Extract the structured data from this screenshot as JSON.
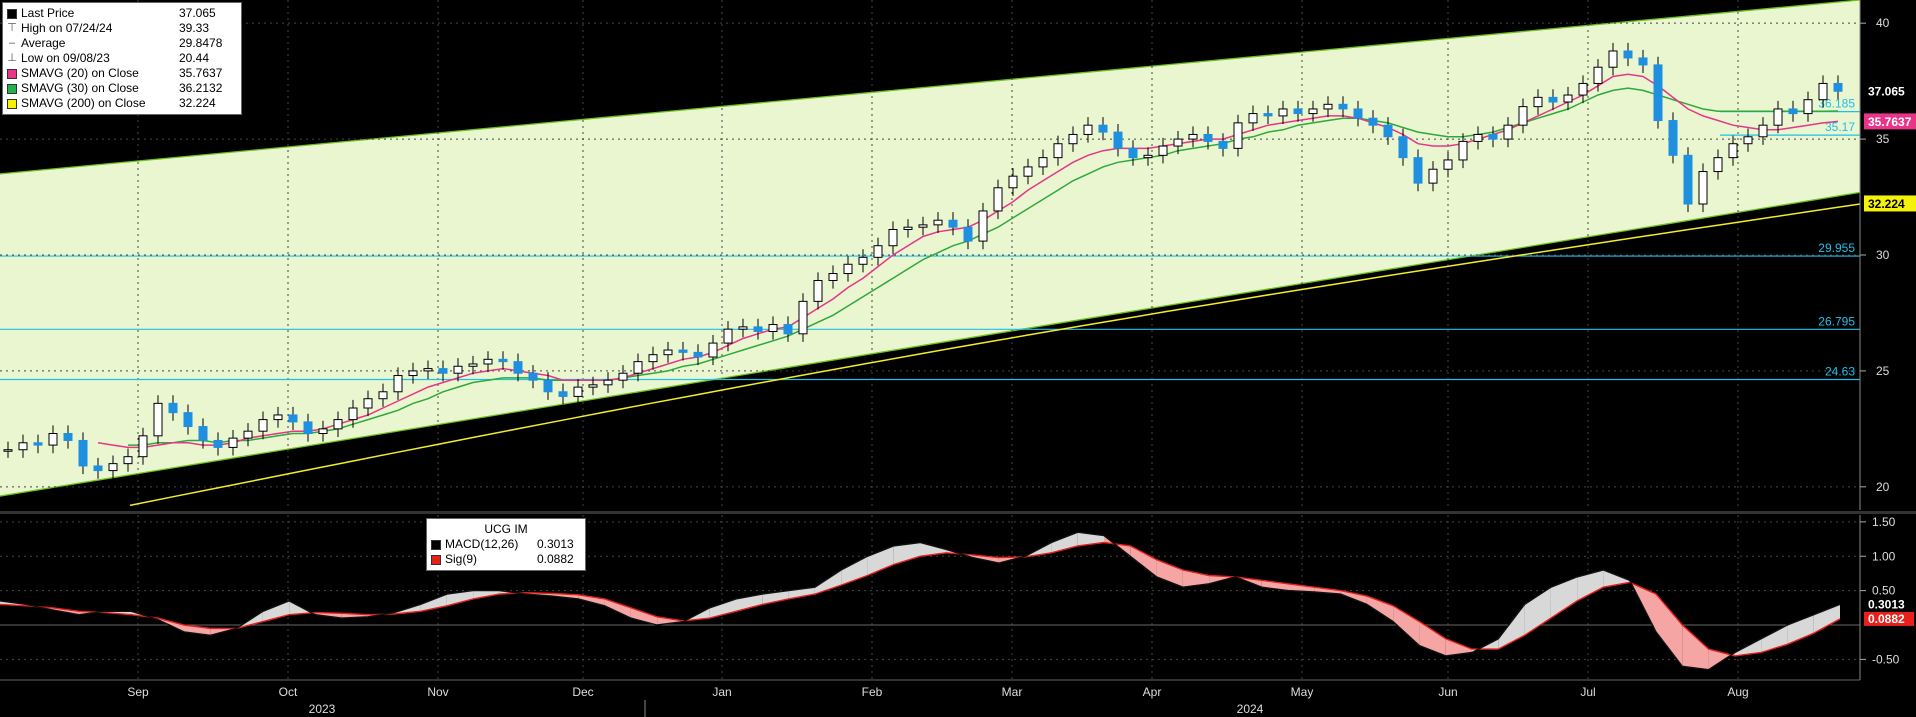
{
  "legend": {
    "items": [
      {
        "label": "Last Price",
        "value": "37.065",
        "color": "#000000",
        "glyph": "square"
      },
      {
        "label": "High on 07/24/24",
        "value": "39.33",
        "glyph": "high"
      },
      {
        "label": "Average",
        "value": "29.8478",
        "glyph": "avg"
      },
      {
        "label": "Low on 09/08/23",
        "value": "20.44",
        "glyph": "low"
      },
      {
        "label": "SMAVG (20)  on Close",
        "value": "35.7637",
        "color": "#e8358a",
        "glyph": "square"
      },
      {
        "label": "SMAVG (30)  on Close",
        "value": "36.2132",
        "color": "#22b14c",
        "glyph": "square"
      },
      {
        "label": "SMAVG (200)  on Close",
        "value": "32.224",
        "color": "#f5f20a",
        "glyph": "square"
      }
    ]
  },
  "macd_legend": {
    "title": "UCG IM",
    "items": [
      {
        "label": "MACD(12,26)",
        "value": "0.3013",
        "color": "#000000"
      },
      {
        "label": "Sig(9)",
        "value": "0.0882",
        "color": "#e8201c"
      }
    ]
  },
  "chart_data": [
    {
      "type": "candlestick",
      "title": "UCG IM",
      "x_months": [
        "Sep",
        "Oct",
        "Nov",
        "Dec",
        "Jan",
        "Feb",
        "Mar",
        "Apr",
        "May",
        "Jun",
        "Jul",
        "Aug"
      ],
      "years": [
        "2023",
        "2024"
      ],
      "y_ticks": [
        20,
        25,
        30,
        35,
        40
      ],
      "ylim": [
        19,
        41
      ],
      "grid": true,
      "levels": [
        {
          "value": 24.63,
          "label": "24.63"
        },
        {
          "value": 26.795,
          "label": "26.795"
        },
        {
          "value": 29.955,
          "label": "29.955"
        },
        {
          "value": 35.17,
          "label": "35.17"
        },
        {
          "value": 36.185,
          "label": "36.185"
        }
      ],
      "price_tags": [
        {
          "value": 37.065,
          "label": "37.065",
          "bg": "#000000",
          "fg": "#ffffff"
        },
        {
          "value": 35.7637,
          "label": "35.7637",
          "bg": "#e8358a",
          "fg": "#ffffff"
        },
        {
          "value": 32.224,
          "label": "32.224",
          "bg": "#f5f20a",
          "fg": "#000000"
        }
      ],
      "close_series": [
        21.6,
        21.9,
        21.8,
        22.3,
        22.0,
        20.9,
        20.7,
        21.0,
        21.3,
        22.2,
        23.6,
        23.2,
        22.6,
        22.0,
        21.7,
        22.1,
        22.4,
        22.9,
        23.1,
        22.8,
        22.3,
        22.5,
        22.9,
        23.4,
        23.8,
        24.1,
        24.8,
        25.0,
        25.1,
        24.9,
        25.2,
        25.3,
        25.5,
        25.4,
        24.9,
        24.6,
        24.1,
        23.9,
        24.3,
        24.4,
        24.6,
        24.9,
        25.4,
        25.7,
        25.9,
        25.8,
        25.6,
        26.2,
        26.8,
        26.9,
        26.7,
        27.0,
        26.6,
        28.0,
        28.9,
        29.2,
        29.6,
        29.9,
        30.4,
        31.1,
        31.2,
        31.3,
        31.5,
        31.2,
        30.6,
        31.9,
        32.9,
        33.4,
        33.8,
        34.2,
        34.8,
        35.2,
        35.6,
        35.3,
        34.6,
        34.2,
        34.3,
        34.7,
        35.0,
        35.2,
        34.9,
        34.6,
        35.7,
        36.1,
        36.0,
        36.3,
        36.1,
        36.3,
        36.5,
        36.3,
        35.9,
        35.6,
        35.1,
        34.2,
        33.1,
        33.7,
        34.1,
        34.9,
        35.2,
        35.0,
        35.6,
        36.4,
        36.8,
        36.6,
        36.9,
        37.4,
        38.1,
        38.8,
        38.5,
        38.2,
        35.8,
        34.3,
        32.2,
        33.6,
        34.2,
        34.8,
        35.1,
        35.6,
        36.3,
        36.1,
        36.7,
        37.4,
        37.065
      ],
      "sma20": [
        null,
        null,
        null,
        null,
        null,
        null,
        21.9,
        21.8,
        21.7,
        21.7,
        21.8,
        21.9,
        21.9,
        21.8,
        21.8,
        21.9,
        22.1,
        22.2,
        22.3,
        22.4,
        22.4,
        22.5,
        22.7,
        22.9,
        23.1,
        23.4,
        23.7,
        24.0,
        24.3,
        24.5,
        24.7,
        24.9,
        25.0,
        25.1,
        25.0,
        24.9,
        24.8,
        24.6,
        24.6,
        24.6,
        24.6,
        24.7,
        24.9,
        25.1,
        25.3,
        25.5,
        25.6,
        25.8,
        26.1,
        26.4,
        26.6,
        26.8,
        26.9,
        27.3,
        27.7,
        28.1,
        28.6,
        29.0,
        29.5,
        30.0,
        30.4,
        30.8,
        31.0,
        31.1,
        31.2,
        31.5,
        31.9,
        32.3,
        32.8,
        33.2,
        33.6,
        34.0,
        34.3,
        34.5,
        34.6,
        34.6,
        34.6,
        34.7,
        34.8,
        34.9,
        35.0,
        35.0,
        35.2,
        35.4,
        35.6,
        35.7,
        35.8,
        35.9,
        36.0,
        36.0,
        35.9,
        35.7,
        35.5,
        35.2,
        34.8,
        34.7,
        34.7,
        34.8,
        35.0,
        35.2,
        35.4,
        35.7,
        36.0,
        36.3,
        36.6,
        36.9,
        37.3,
        37.7,
        37.8,
        37.7,
        37.3,
        36.8,
        36.3,
        36.0,
        35.8,
        35.6,
        35.5,
        35.4,
        35.4,
        35.5,
        35.6,
        35.7,
        35.7637
      ],
      "sma30": [
        null,
        null,
        null,
        null,
        null,
        null,
        null,
        null,
        21.8,
        21.8,
        21.9,
        21.9,
        22.0,
        22.0,
        21.9,
        22.0,
        22.0,
        22.1,
        22.2,
        22.3,
        22.3,
        22.4,
        22.5,
        22.7,
        22.9,
        23.1,
        23.3,
        23.6,
        23.8,
        24.1,
        24.3,
        24.5,
        24.6,
        24.7,
        24.7,
        24.7,
        24.6,
        24.6,
        24.6,
        24.6,
        24.6,
        24.7,
        24.8,
        24.9,
        25.0,
        25.2,
        25.3,
        25.5,
        25.7,
        25.9,
        26.1,
        26.3,
        26.5,
        26.8,
        27.1,
        27.4,
        27.8,
        28.2,
        28.6,
        29.0,
        29.4,
        29.8,
        30.1,
        30.4,
        30.6,
        30.9,
        31.2,
        31.6,
        32.0,
        32.4,
        32.8,
        33.2,
        33.5,
        33.8,
        34.0,
        34.1,
        34.2,
        34.3,
        34.5,
        34.6,
        34.7,
        34.8,
        35.0,
        35.1,
        35.3,
        35.4,
        35.6,
        35.7,
        35.8,
        35.9,
        35.9,
        35.8,
        35.7,
        35.5,
        35.3,
        35.2,
        35.1,
        35.1,
        35.2,
        35.3,
        35.5,
        35.7,
        35.9,
        36.1,
        36.3,
        36.6,
        36.9,
        37.1,
        37.2,
        37.1,
        36.9,
        36.7,
        36.5,
        36.3,
        36.2,
        36.2,
        36.2,
        36.2,
        36.2,
        36.2,
        36.2,
        36.2,
        36.2132
      ],
      "sma200": [
        null,
        null,
        null,
        null,
        null,
        null,
        null,
        null,
        null,
        null,
        null,
        null,
        null,
        null,
        null,
        null,
        null,
        null,
        null,
        null,
        null,
        null,
        null,
        null,
        null,
        null,
        null,
        null,
        null,
        null,
        null,
        null,
        null,
        null,
        null,
        null,
        null,
        null,
        null,
        null,
        null,
        null,
        null,
        null,
        null,
        null,
        null,
        null,
        null,
        null,
        null,
        null,
        null,
        null,
        null,
        null,
        null,
        null,
        null,
        null,
        null,
        null,
        null,
        null,
        null,
        null,
        null,
        null,
        null,
        null,
        null,
        null,
        null,
        null,
        null,
        null,
        null,
        null,
        null,
        null,
        null,
        null,
        null,
        null,
        null,
        null,
        null,
        null,
        null,
        null,
        null,
        null,
        null,
        null,
        null,
        null,
        null,
        null,
        null,
        null,
        null,
        null,
        null,
        null,
        null,
        null,
        null,
        null,
        null,
        null,
        null,
        null,
        null,
        null,
        null,
        null,
        null,
        null,
        null,
        null,
        null,
        null,
        32.224
      ]
    },
    {
      "type": "line",
      "title": "UCG IM",
      "y_ticks": [
        -0.5,
        0.5,
        1.0,
        1.5
      ],
      "y_tick_labels": [
        "-0.50",
        "0.50",
        "1.00",
        "1.50"
      ],
      "ylim": [
        -0.8,
        1.6
      ],
      "price_tags": [
        {
          "value": 0.3013,
          "label": "0.3013",
          "bg": "#000000",
          "fg": "#ffffff"
        },
        {
          "value": 0.0882,
          "label": "0.0882",
          "bg": "#e8201c",
          "fg": "#ffffff"
        }
      ],
      "series": [
        {
          "name": "MACD(12,26)",
          "values": [
            0.35,
            0.3,
            0.22,
            0.15,
            0.2,
            0.2,
            0.08,
            -0.1,
            -0.15,
            -0.05,
            0.2,
            0.35,
            0.15,
            0.1,
            0.12,
            0.18,
            0.3,
            0.45,
            0.5,
            0.5,
            0.45,
            0.42,
            0.38,
            0.28,
            0.1,
            0.0,
            0.05,
            0.25,
            0.38,
            0.45,
            0.5,
            0.55,
            0.8,
            1.0,
            1.15,
            1.2,
            1.1,
            0.98,
            0.9,
            1.0,
            1.2,
            1.35,
            1.3,
            1.0,
            0.7,
            0.55,
            0.6,
            0.7,
            0.55,
            0.5,
            0.48,
            0.45,
            0.3,
            0.05,
            -0.3,
            -0.45,
            -0.4,
            -0.2,
            0.3,
            0.55,
            0.7,
            0.8,
            0.65,
            -0.1,
            -0.6,
            -0.65,
            -0.4,
            -0.2,
            0.0,
            0.15,
            0.3
          ]
        },
        {
          "name": "Sig(9)",
          "values": [
            0.3,
            0.28,
            0.25,
            0.2,
            0.18,
            0.15,
            0.1,
            0.0,
            -0.05,
            -0.05,
            0.05,
            0.15,
            0.18,
            0.17,
            0.15,
            0.16,
            0.2,
            0.28,
            0.38,
            0.45,
            0.47,
            0.46,
            0.44,
            0.38,
            0.25,
            0.12,
            0.06,
            0.1,
            0.2,
            0.3,
            0.38,
            0.45,
            0.58,
            0.72,
            0.88,
            1.0,
            1.05,
            1.02,
            0.98,
            0.99,
            1.05,
            1.15,
            1.2,
            1.15,
            0.95,
            0.8,
            0.72,
            0.7,
            0.65,
            0.6,
            0.55,
            0.5,
            0.42,
            0.28,
            0.05,
            -0.2,
            -0.35,
            -0.35,
            -0.15,
            0.1,
            0.35,
            0.55,
            0.62,
            0.45,
            0.0,
            -0.35,
            -0.45,
            -0.4,
            -0.28,
            -0.12,
            0.0882
          ]
        }
      ]
    }
  ]
}
